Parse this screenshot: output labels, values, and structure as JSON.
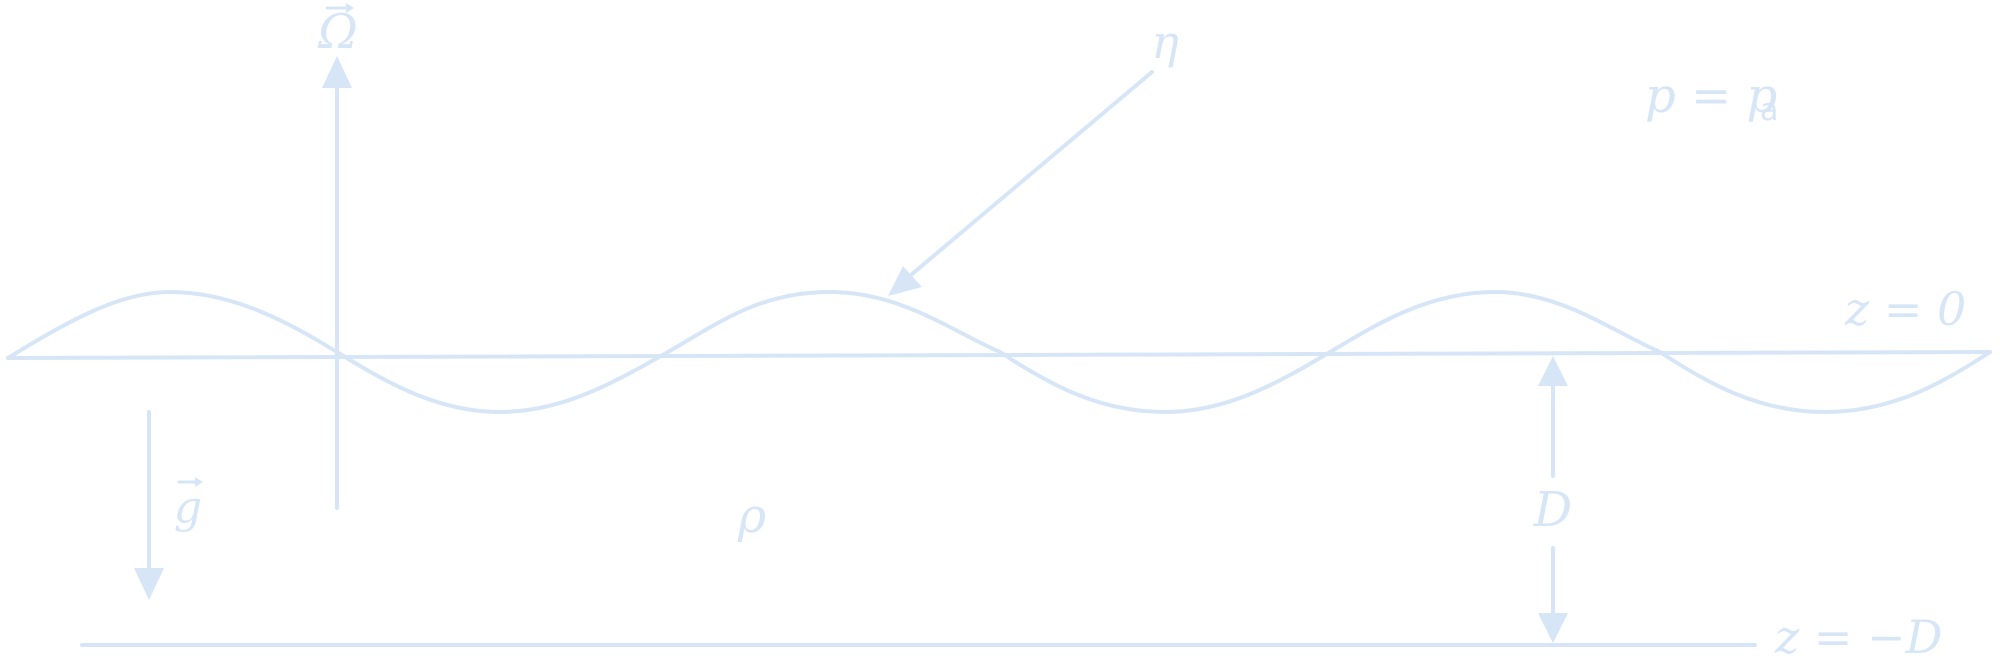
{
  "diagram": {
    "colors": {
      "stroke": "#d7e6f7",
      "text": "#d7e6f7",
      "background": "#ffffff"
    },
    "labels": {
      "omega": "Ω",
      "eta": "η",
      "pressure": "p = p",
      "pressure_sub": "a",
      "surface": "z = 0",
      "gravity": "g",
      "density": "ρ",
      "depth": "D",
      "bottom": "z = −D"
    }
  }
}
